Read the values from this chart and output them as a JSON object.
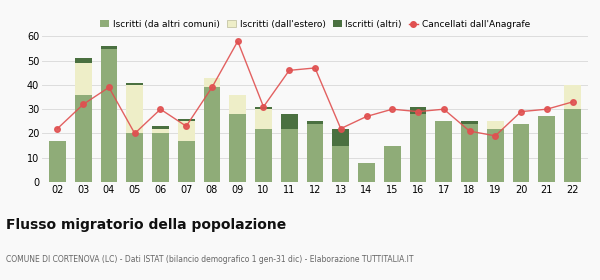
{
  "years": [
    "02",
    "03",
    "04",
    "05",
    "06",
    "07",
    "08",
    "09",
    "10",
    "11",
    "12",
    "13",
    "14",
    "15",
    "16",
    "17",
    "18",
    "19",
    "20",
    "21",
    "22"
  ],
  "iscritti_comuni": [
    17,
    36,
    55,
    20,
    20,
    17,
    39,
    28,
    22,
    22,
    24,
    15,
    8,
    15,
    28,
    25,
    24,
    22,
    24,
    27,
    30
  ],
  "iscritti_estero": [
    0,
    13,
    0,
    20,
    2,
    8,
    4,
    8,
    8,
    0,
    0,
    0,
    0,
    0,
    0,
    0,
    0,
    3,
    0,
    0,
    10
  ],
  "iscritti_altri": [
    0,
    2,
    1,
    1,
    1,
    1,
    0,
    0,
    1,
    6,
    1,
    7,
    0,
    0,
    3,
    0,
    1,
    0,
    0,
    0,
    0
  ],
  "cancellati": [
    22,
    32,
    39,
    20,
    30,
    23,
    39,
    58,
    31,
    46,
    47,
    22,
    27,
    30,
    29,
    30,
    21,
    19,
    29,
    30,
    33
  ],
  "color_comuni": "#8fac78",
  "color_estero": "#eeeec8",
  "color_altri": "#4a7040",
  "color_cancellati": "#e05050",
  "ylim": [
    0,
    60
  ],
  "yticks": [
    0,
    10,
    20,
    30,
    40,
    50,
    60
  ],
  "legend_labels": [
    "Iscritti (da altri comuni)",
    "Iscritti (dall'estero)",
    "Iscritti (altri)",
    "Cancellati dall'Anagrafe"
  ],
  "title": "Flusso migratorio della popolazione",
  "subtitle": "COMUNE DI CORTENOVA (LC) - Dati ISTAT (bilancio demografico 1 gen-31 dic) - Elaborazione TUTTITALIA.IT",
  "bg_color": "#f9f9f9",
  "grid_color": "#dddddd"
}
